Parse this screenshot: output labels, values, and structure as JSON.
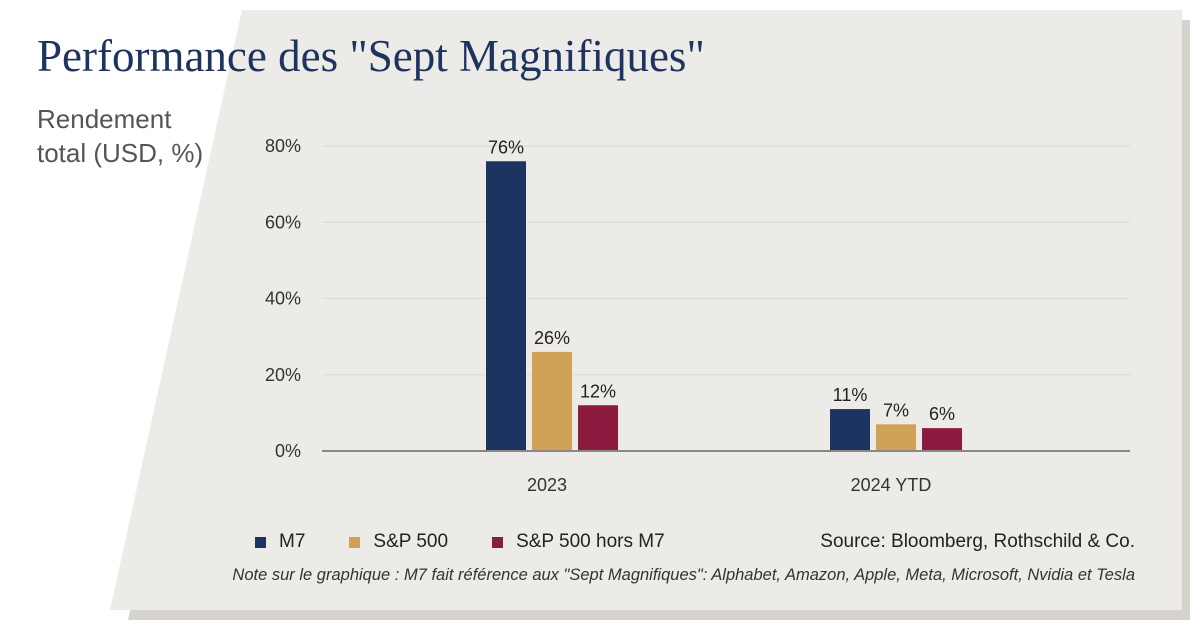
{
  "title": "Performance des \"Sept Magnifiques\"",
  "subtitle": "Rendement total (USD, %)",
  "colors": {
    "panel": "#edebe7",
    "shadow": "#d6d3cd",
    "gridline": "#dcdad5",
    "axis": "#888888"
  },
  "chart_data": {
    "type": "bar",
    "categories": [
      "2023",
      "2024 YTD"
    ],
    "series": [
      {
        "name": "M7",
        "values": [
          76,
          11
        ],
        "labels": [
          "76%",
          "11%"
        ],
        "color": "#1d3461"
      },
      {
        "name": "S&P 500",
        "values": [
          26,
          7
        ],
        "labels": [
          "26%",
          "7%"
        ],
        "color": "#d1a155"
      },
      {
        "name": "S&P 500 hors M7",
        "values": [
          12,
          6
        ],
        "labels": [
          "12%",
          "6%"
        ],
        "color": "#8b1c3f"
      }
    ],
    "y_ticks": [
      0,
      20,
      40,
      60,
      80
    ],
    "y_tick_labels": [
      "0%",
      "20%",
      "40%",
      "60%",
      "80%"
    ],
    "ylim": [
      0,
      80
    ],
    "ylabel": "Rendement total (USD, %)",
    "legend_position": "bottom-left"
  },
  "source": "Source: Bloomberg, Rothschild & Co.",
  "note": "Note sur le graphique : M7 fait référence aux \"Sept Magnifiques\": Alphabet, Amazon, Apple, Meta, Microsoft, Nvidia et Tesla"
}
